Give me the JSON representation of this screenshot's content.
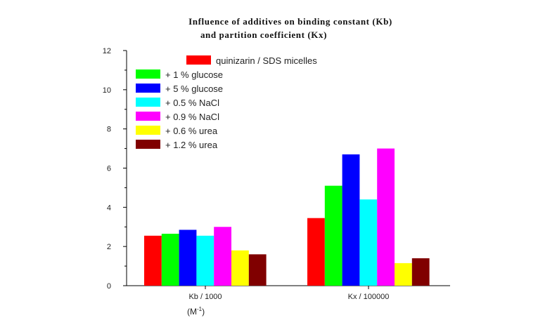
{
  "chart_data": {
    "type": "bar",
    "title_lines": [
      "Influence of additives on binding constant (Kb)",
      "and partition coefficient (Kx)"
    ],
    "categories": [
      "Kb / 1000",
      "Kx / 100000"
    ],
    "unit_label": {
      "base": "(M",
      "sup": "-1",
      "close": ")"
    },
    "ylim": [
      0,
      12
    ],
    "yticks": [
      0,
      2,
      4,
      6,
      8,
      10,
      12
    ],
    "grid": false,
    "legend_position": "top-left",
    "series": [
      {
        "name": "quinizarin / SDS micelles",
        "color": "#ff0000",
        "values": [
          2.55,
          3.45
        ]
      },
      {
        "name": "+ 1 % glucose",
        "color": "#00ff00",
        "values": [
          2.65,
          5.1
        ]
      },
      {
        "name": "+ 5 % glucose",
        "color": "#0000ff",
        "values": [
          2.85,
          6.7
        ]
      },
      {
        "name": "+ 0.5 % NaCl",
        "color": "#00ffff",
        "values": [
          2.55,
          4.4
        ]
      },
      {
        "name": "+ 0.9 % NaCl",
        "color": "#ff00ff",
        "values": [
          3.0,
          7.0
        ]
      },
      {
        "name": "+ 0.6 % urea",
        "color": "#ffff00",
        "values": [
          1.8,
          1.15
        ]
      },
      {
        "name": "+ 1.2 % urea",
        "color": "#800000",
        "values": [
          1.6,
          1.4
        ]
      }
    ]
  }
}
